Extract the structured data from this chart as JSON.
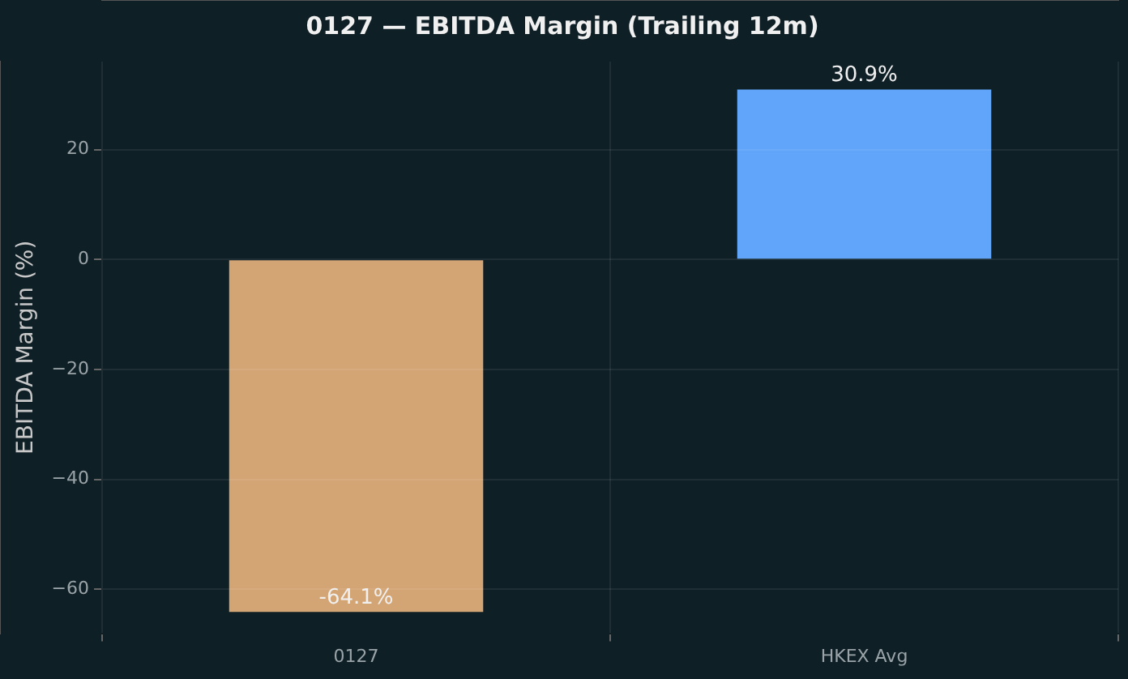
{
  "chart_data": {
    "type": "bar",
    "title": "0127 — EBITDA Margin (Trailing 12m)",
    "ylabel": "EBITDA Margin (%)",
    "categories": [
      "0127",
      "HKEX Avg"
    ],
    "values": [
      -64.1,
      30.9
    ],
    "colors": [
      "#d4a574",
      "#60a5fa"
    ],
    "value_labels": [
      "-64.1%",
      "30.9%"
    ],
    "ylim": [
      -68,
      36
    ],
    "yticks": [
      {
        "value": -60,
        "label": "−60"
      },
      {
        "value": -40,
        "label": "−40"
      },
      {
        "value": -20,
        "label": "−20"
      },
      0,
      20
    ],
    "grid": true
  }
}
